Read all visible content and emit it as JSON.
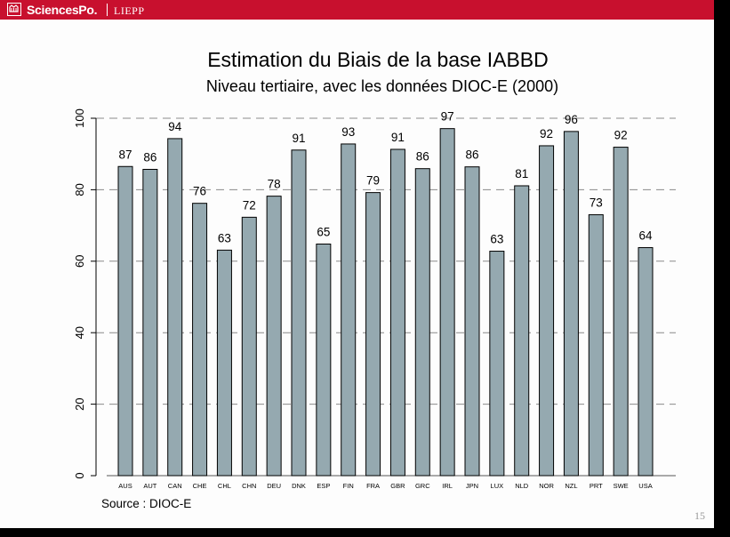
{
  "header": {
    "brand": "SciencesPo.",
    "lab": "LIEPP"
  },
  "page_number": "15",
  "chart_data": {
    "type": "bar",
    "title": "Estimation du Biais de la base IABBD",
    "subtitle": "Niveau tertiaire, avec les données DIOC-E (2000)",
    "source": "Source : DIOC-E",
    "categories": [
      "AUS",
      "AUT",
      "CAN",
      "CHE",
      "CHL",
      "CHN",
      "DEU",
      "DNK",
      "ESP",
      "FIN",
      "FRA",
      "GBR",
      "GRC",
      "IRL",
      "JPN",
      "LUX",
      "NLD",
      "NOR",
      "NZL",
      "PRT",
      "SWE",
      "USA"
    ],
    "values": [
      86.5,
      85.7,
      94.3,
      76.2,
      63.1,
      72.3,
      78.2,
      91.1,
      64.8,
      92.8,
      79.2,
      91.3,
      85.9,
      97.1,
      86.4,
      62.8,
      81.1,
      92.3,
      96.3,
      73.0,
      91.9,
      63.8
    ],
    "labels": [
      "87",
      "86",
      "94",
      "76",
      "63",
      "72",
      "78",
      "91",
      "65",
      "93",
      "79",
      "91",
      "86",
      "97",
      "86",
      "63",
      "81",
      "92",
      "96",
      "73",
      "92",
      "64"
    ],
    "ylim": [
      0,
      100
    ],
    "yticks": [
      "0",
      "20",
      "40",
      "60",
      "80",
      "100"
    ],
    "bar_color": "#95a9b0",
    "grid": "dashed"
  }
}
